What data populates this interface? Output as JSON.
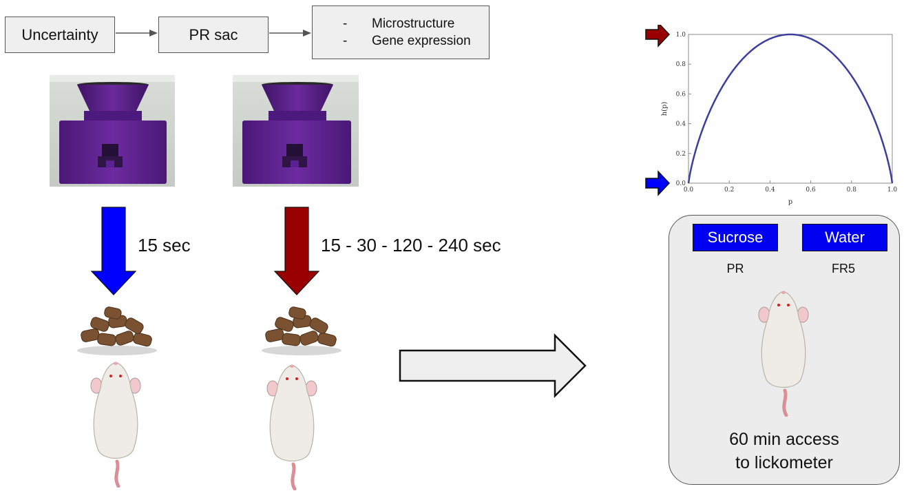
{
  "flow": {
    "step1": "Uncertainty",
    "step2": "PR sac",
    "outcomes": [
      "Microstructure",
      "Gene expression"
    ]
  },
  "conditions": {
    "certain_delay": "15 sec",
    "uncertain_delays": "15 - 30 - 120 - 240 sec"
  },
  "colors": {
    "certain": "#0000ff",
    "uncertain": "#990000",
    "device": "#5a2088"
  },
  "lickometer": {
    "left_bottle": "Sucrose",
    "right_bottle": "Water",
    "left_schedule": "PR",
    "right_schedule": "FR5",
    "access_line1": "60 min access",
    "access_line2": "to lickometer"
  },
  "chart_data": {
    "type": "line",
    "title": "",
    "xlabel": "p",
    "ylabel": "h(p)",
    "xlim": [
      0,
      1
    ],
    "ylim": [
      0,
      1
    ],
    "xticks": [
      "0.0",
      "0.2",
      "0.4",
      "0.6",
      "0.8",
      "1.0"
    ],
    "yticks": [
      "0.0",
      "0.2",
      "0.4",
      "0.6",
      "0.8",
      "1.0"
    ],
    "series": [
      {
        "x": [
          0,
          0.01,
          0.05,
          0.1,
          0.15,
          0.2,
          0.25,
          0.3,
          0.35,
          0.4,
          0.45,
          0.5,
          0.55,
          0.6,
          0.65,
          0.7,
          0.75,
          0.8,
          0.85,
          0.9,
          0.95,
          0.99,
          1
        ],
        "y": [
          0,
          0.081,
          0.286,
          0.469,
          0.61,
          0.722,
          0.811,
          0.881,
          0.934,
          0.971,
          0.993,
          1.0,
          0.993,
          0.971,
          0.934,
          0.881,
          0.811,
          0.722,
          0.61,
          0.469,
          0.286,
          0.081,
          0
        ]
      }
    ],
    "markers": [
      {
        "y": 1.0,
        "color": "#990000"
      },
      {
        "y": 0.0,
        "color": "#0000ff"
      }
    ]
  }
}
